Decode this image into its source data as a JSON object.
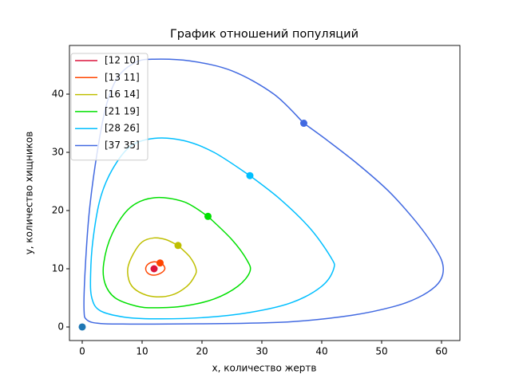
{
  "chart_data": {
    "type": "line",
    "title": "График отношений популяций",
    "x_label": "x, количество жертв",
    "y_label": "y, количество хищников",
    "xlim": [
      -2.13,
      63.07
    ],
    "ylim": [
      -2.33,
      48.36
    ],
    "xticks": [
      0,
      10,
      20,
      30,
      40,
      50,
      60
    ],
    "yticks": [
      0,
      10,
      20,
      30,
      40
    ],
    "legend": "upper left",
    "series": [
      {
        "name": "[12 10]",
        "color": "#dc143c",
        "x": [
          12
        ],
        "y": [
          10
        ]
      },
      {
        "name": "[13 11]",
        "color": "#ff4500",
        "x": [
          13,
          12,
          11,
          10.6,
          11,
          12,
          13.2,
          13.8,
          13.5,
          13
        ],
        "y": [
          11,
          11.2,
          10.8,
          10,
          9.2,
          8.9,
          9.3,
          10,
          10.7,
          11
        ]
      },
      {
        "name": "[16 14]",
        "color": "#bfbf00",
        "x": [
          16,
          14,
          12,
          10,
          8.5,
          7.6,
          8,
          9.5,
          12,
          15,
          17.5,
          18.8,
          19,
          18,
          16
        ],
        "y": [
          14,
          15,
          15.3,
          14.6,
          12.5,
          10,
          7.5,
          6,
          5.2,
          5.5,
          7,
          8.8,
          10,
          12,
          14
        ]
      },
      {
        "name": "[21 19]",
        "color": "#00e000",
        "x": [
          21,
          17,
          12,
          8,
          5,
          3.6,
          3.8,
          5.5,
          9,
          12,
          17,
          22,
          26,
          28,
          27.5,
          25,
          21
        ],
        "y": [
          19,
          21.5,
          22.2,
          20.5,
          16,
          11,
          7.5,
          5,
          3.6,
          3.3,
          3.6,
          4.8,
          7,
          9.5,
          11.5,
          15,
          19
        ]
      },
      {
        "name": "[28 26]",
        "color": "#00bfff",
        "x": [
          28,
          22,
          17,
          12,
          8,
          5,
          3,
          1.8,
          1.4,
          1.6,
          3,
          7,
          12,
          20,
          28,
          35,
          40,
          42,
          41.5,
          38,
          33,
          28
        ],
        "y": [
          26,
          30,
          32,
          32.4,
          31,
          27,
          22,
          15,
          9,
          5,
          2.8,
          1.7,
          1.4,
          1.6,
          2.5,
          4.2,
          7,
          10,
          12,
          17,
          22,
          26
        ]
      },
      {
        "name": "[37 35]",
        "color": "#4169e1",
        "x": [
          37,
          32,
          25,
          18,
          12,
          9,
          6,
          4,
          2.5,
          1.2,
          0.5,
          0.3,
          0.8,
          3,
          8,
          12,
          25,
          35,
          45,
          52,
          56,
          59,
          60.2,
          60,
          58,
          55,
          51,
          46,
          41,
          37
        ],
        "y": [
          35,
          40,
          44,
          45.7,
          46,
          45.5,
          43,
          38,
          30,
          20,
          10,
          3,
          1.2,
          0.6,
          0.5,
          0.5,
          0.6,
          0.9,
          2,
          3.5,
          5,
          7,
          9,
          11.5,
          15,
          19,
          23.5,
          28,
          32,
          35
        ]
      }
    ],
    "points": [
      {
        "x": 0,
        "y": 0,
        "color": "#1f77b4"
      }
    ]
  }
}
